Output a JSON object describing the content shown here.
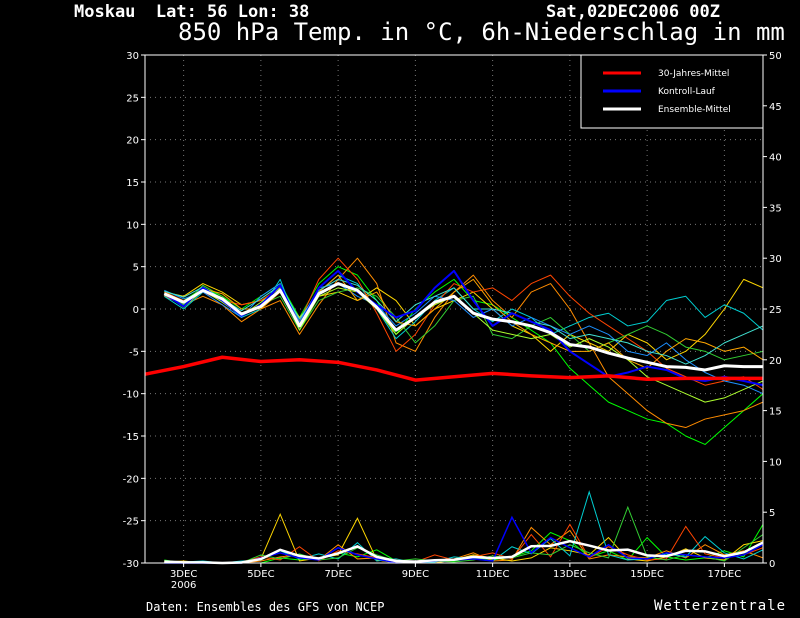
{
  "header": {
    "location": "Moskau  Lat: 56 Lon: 38",
    "date": "Sat,02DEC2006 00Z",
    "title": "850 hPa Temp. in °C, 6h-Niederschlag in mm"
  },
  "footer": {
    "credit": "Daten: Ensembles des GFS von NCEP",
    "brand": "Wetterzentrale"
  },
  "colors": {
    "background": "#000000",
    "climate": "#ff0000",
    "control": "#0000ff",
    "ensemble": "#ffffff",
    "members": [
      "#00ff00",
      "#ff8c00",
      "#ffd700",
      "#00ced1",
      "#ff4500",
      "#32cd32",
      "#1e90ff",
      "#ffa500",
      "#adff2f",
      "#40e0d0"
    ]
  },
  "chart_data": {
    "type": "line",
    "x_unit": "days from 2006-12-02 00Z",
    "xlim": [
      0,
      16
    ],
    "x_ticks": [
      {
        "x": 1,
        "label": "3DEC",
        "label2": "2006"
      },
      {
        "x": 3,
        "label": "5DEC",
        "label2": ""
      },
      {
        "x": 5,
        "label": "7DEC",
        "label2": ""
      },
      {
        "x": 7,
        "label": "9DEC",
        "label2": ""
      },
      {
        "x": 9,
        "label": "11DEC",
        "label2": ""
      },
      {
        "x": 11,
        "label": "13DEC",
        "label2": ""
      },
      {
        "x": 13,
        "label": "15DEC",
        "label2": ""
      },
      {
        "x": 15,
        "label": "17DEC",
        "label2": ""
      }
    ],
    "y_left": {
      "min": -30,
      "max": 30,
      "step": 5,
      "labels": [
        "-30",
        "-25",
        "-20",
        "-15",
        "-10",
        "-5",
        "0",
        "5",
        "10",
        "15",
        "20",
        "25",
        "30"
      ]
    },
    "y_right": {
      "min": 0,
      "max": 50,
      "step": 5,
      "labels": [
        "0",
        "5",
        "10",
        "15",
        "20",
        "25",
        "30",
        "35",
        "40",
        "45",
        "50"
      ]
    },
    "grid": true,
    "legend": {
      "placement": "top-right",
      "entries": [
        "30-Jahres-Mittel",
        "Kontroll-Lauf",
        "Ensemble-Mittel"
      ]
    },
    "temp_series": [
      {
        "name": "30-Jahres-Mittel",
        "role": "climate",
        "x": [
          0,
          1,
          2,
          3,
          4,
          5,
          6,
          7,
          8,
          9,
          10,
          11,
          12,
          13,
          14,
          15,
          16
        ],
        "values": [
          -7.7,
          -6.8,
          -5.7,
          -6.2,
          -6.0,
          -6.3,
          -7.2,
          -8.4,
          -8.0,
          -7.6,
          -7.9,
          -8.1,
          -7.9,
          -8.3,
          -8.2,
          -8.2,
          -8.2
        ]
      },
      {
        "name": "Kontroll-Lauf",
        "role": "control",
        "x": [
          0.5,
          1,
          1.5,
          2,
          2.5,
          3,
          3.5,
          4,
          4.5,
          5,
          5.5,
          6,
          6.5,
          7,
          7.5,
          8,
          8.5,
          9,
          9.5,
          10,
          10.5,
          11,
          11.5,
          12,
          12.5,
          13,
          13.5,
          14,
          14.5,
          15,
          15.5,
          16
        ],
        "values": [
          1.8,
          0.3,
          2.5,
          1.0,
          -0.8,
          0.5,
          2.8,
          -2.0,
          2.5,
          4.5,
          2.0,
          0.5,
          -1.0,
          -0.2,
          2.5,
          4.5,
          1.0,
          -2.0,
          -0.5,
          -1.5,
          -2.5,
          -5.0,
          -6.5,
          -8.0,
          -7.5,
          -6.8,
          -7.2,
          -8.2,
          -8.5,
          -8.0,
          -8.5,
          -9.0
        ]
      },
      {
        "name": "Ensemble-Mittel",
        "role": "ensemble",
        "x": [
          0.5,
          1,
          1.5,
          2,
          2.5,
          3,
          3.5,
          4,
          4.5,
          5,
          5.5,
          6,
          6.5,
          7,
          7.5,
          8,
          8.5,
          9,
          9.5,
          10,
          10.5,
          11,
          11.5,
          12,
          12.5,
          13,
          13.5,
          14,
          14.5,
          15,
          15.5,
          16
        ],
        "values": [
          1.8,
          0.8,
          2.2,
          1.2,
          -0.6,
          0.3,
          2.2,
          -2.0,
          1.8,
          3.0,
          2.2,
          0.2,
          -2.5,
          -1.0,
          0.8,
          1.5,
          -0.5,
          -1.2,
          -1.5,
          -2.0,
          -2.8,
          -4.2,
          -4.5,
          -5.2,
          -5.8,
          -6.3,
          -6.8,
          -6.9,
          -7.2,
          -6.7,
          -6.8,
          -6.8
        ]
      },
      {
        "name": "",
        "role": "member",
        "x": [
          0.5,
          1,
          1.5,
          2,
          2.5,
          3,
          3.5,
          4,
          4.5,
          5,
          5.5,
          6,
          6.5,
          7,
          7.5,
          8,
          8.5,
          9,
          9.5,
          10,
          10.5,
          11,
          11.5,
          12,
          12.5,
          13,
          13.5,
          14,
          14.5,
          15,
          15.5,
          16
        ],
        "values": [
          2.0,
          1.0,
          2.5,
          1.5,
          0.0,
          1.5,
          3.0,
          -1.0,
          3.0,
          5.0,
          4.0,
          1.0,
          -3.0,
          0.0,
          2.0,
          3.5,
          1.0,
          0.5,
          -1.0,
          -2.5,
          -4.0,
          -7.0,
          -9.0,
          -11.0,
          -12.0,
          -13.0,
          -13.5,
          -15.0,
          -16.0,
          -14.0,
          -12.0,
          -10.0
        ]
      },
      {
        "name": "",
        "role": "member",
        "x": [
          0.5,
          1,
          1.5,
          2,
          2.5,
          3,
          3.5,
          4,
          4.5,
          5,
          5.5,
          6,
          6.5,
          7,
          7.5,
          8,
          8.5,
          9,
          9.5,
          10,
          10.5,
          11,
          11.5,
          12,
          12.5,
          13,
          13.5,
          14,
          14.5,
          15,
          15.5,
          16
        ],
        "values": [
          1.5,
          0.5,
          1.5,
          0.5,
          -1.5,
          0.0,
          1.0,
          -3.0,
          0.5,
          3.5,
          6.0,
          3.0,
          -4.0,
          -5.0,
          -1.0,
          2.0,
          4.0,
          1.0,
          -1.0,
          2.0,
          3.0,
          0.0,
          -4.0,
          -8.0,
          -10.0,
          -12.0,
          -13.5,
          -14.0,
          -13.0,
          -12.5,
          -12.0,
          -11.0
        ]
      },
      {
        "name": "",
        "role": "member",
        "x": [
          0.5,
          1,
          1.5,
          2,
          2.5,
          3,
          3.5,
          4,
          4.5,
          5,
          5.5,
          6,
          6.5,
          7,
          7.5,
          8,
          8.5,
          9,
          9.5,
          10,
          10.5,
          11,
          11.5,
          12,
          12.5,
          13,
          13.5,
          14,
          14.5,
          15,
          15.5,
          16
        ],
        "values": [
          2.0,
          1.5,
          3.0,
          2.0,
          0.5,
          1.0,
          2.0,
          -1.0,
          1.5,
          2.0,
          1.0,
          2.5,
          1.0,
          -2.0,
          0.0,
          1.0,
          2.0,
          0.0,
          -2.0,
          -3.0,
          -5.0,
          -3.0,
          -4.0,
          -5.0,
          -3.0,
          -4.0,
          -6.0,
          -5.0,
          -3.0,
          0.0,
          3.5,
          2.5
        ]
      },
      {
        "name": "",
        "role": "member",
        "x": [
          0.5,
          1,
          1.5,
          2,
          2.5,
          3,
          3.5,
          4,
          4.5,
          5,
          5.5,
          6,
          6.5,
          7,
          7.5,
          8,
          8.5,
          9,
          9.5,
          10,
          10.5,
          11,
          11.5,
          12,
          12.5,
          13,
          13.5,
          14,
          14.5,
          15,
          15.5,
          16
        ],
        "values": [
          1.5,
          0.0,
          2.0,
          1.0,
          -1.0,
          0.0,
          3.5,
          -2.5,
          2.0,
          4.0,
          3.0,
          0.0,
          -3.5,
          -1.5,
          1.0,
          2.5,
          0.0,
          -1.5,
          0.0,
          -1.0,
          -3.0,
          -2.0,
          -1.0,
          -0.5,
          -2.0,
          -1.5,
          1.0,
          1.5,
          -1.0,
          0.5,
          -0.5,
          -2.5
        ]
      },
      {
        "name": "",
        "role": "member",
        "x": [
          0.5,
          1,
          1.5,
          2,
          2.5,
          3,
          3.5,
          4,
          4.5,
          5,
          5.5,
          6,
          6.5,
          7,
          7.5,
          8,
          8.5,
          9,
          9.5,
          10,
          10.5,
          11,
          11.5,
          12,
          12.5,
          13,
          13.5,
          14,
          14.5,
          15,
          15.5,
          16
        ],
        "values": [
          2.0,
          1.0,
          2.0,
          1.0,
          0.5,
          1.0,
          2.5,
          -1.5,
          3.5,
          6.0,
          3.5,
          -0.5,
          -5.0,
          -3.0,
          0.5,
          3.0,
          2.0,
          2.5,
          1.0,
          3.0,
          4.0,
          1.5,
          -0.5,
          -2.0,
          -3.5,
          -5.0,
          -7.0,
          -8.0,
          -9.0,
          -8.5,
          -8.0,
          -9.5
        ]
      },
      {
        "name": "",
        "role": "member",
        "x": [
          0.5,
          1,
          1.5,
          2,
          2.5,
          3,
          3.5,
          4,
          4.5,
          5,
          5.5,
          6,
          6.5,
          7,
          7.5,
          8,
          8.5,
          9,
          9.5,
          10,
          10.5,
          11,
          11.5,
          12,
          12.5,
          13,
          13.5,
          14,
          14.5,
          15,
          15.5,
          16
        ],
        "values": [
          1.8,
          0.5,
          2.8,
          1.5,
          -0.5,
          0.5,
          1.5,
          -2.5,
          1.0,
          2.0,
          2.5,
          1.5,
          -1.0,
          -4.0,
          -2.0,
          1.0,
          1.5,
          -3.0,
          -3.5,
          -2.0,
          -1.0,
          -3.0,
          -5.0,
          -4.0,
          -3.0,
          -2.0,
          -3.0,
          -4.5,
          -5.0,
          -6.0,
          -5.5,
          -5.0
        ]
      },
      {
        "name": "",
        "role": "member",
        "x": [
          0.5,
          1,
          1.5,
          2,
          2.5,
          3,
          3.5,
          4,
          4.5,
          5,
          5.5,
          6,
          6.5,
          7,
          7.5,
          8,
          8.5,
          9,
          9.5,
          10,
          10.5,
          11,
          11.5,
          12,
          12.5,
          13,
          13.5,
          14,
          14.5,
          15,
          15.5,
          16
        ],
        "values": [
          2.2,
          1.2,
          2.0,
          0.5,
          -1.0,
          1.5,
          3.0,
          -1.5,
          2.5,
          3.0,
          1.5,
          0.5,
          -2.0,
          -0.5,
          1.5,
          1.0,
          -1.0,
          0.0,
          -2.0,
          -1.0,
          -2.0,
          -3.0,
          -2.0,
          -3.0,
          -5.0,
          -5.5,
          -4.0,
          -6.0,
          -7.5,
          -8.5,
          -9.0,
          -10.0
        ]
      },
      {
        "name": "",
        "role": "member",
        "x": [
          0.5,
          1,
          1.5,
          2,
          2.5,
          3,
          3.5,
          4,
          4.5,
          5,
          5.5,
          6,
          6.5,
          7,
          7.5,
          8,
          8.5,
          9,
          9.5,
          10,
          10.5,
          11,
          11.5,
          12,
          12.5,
          13,
          13.5,
          14,
          14.5,
          15,
          15.5,
          16
        ],
        "values": [
          1.6,
          0.8,
          2.4,
          1.8,
          0.0,
          0.0,
          2.0,
          -2.0,
          2.0,
          4.0,
          1.0,
          2.0,
          -1.5,
          -2.0,
          0.0,
          2.0,
          3.5,
          0.5,
          -1.5,
          -3.0,
          -4.0,
          -5.0,
          -5.0,
          -4.0,
          -6.0,
          -7.0,
          -5.0,
          -3.5,
          -4.0,
          -5.0,
          -4.5,
          -6.0
        ]
      },
      {
        "name": "",
        "role": "member",
        "x": [
          0.5,
          1,
          1.5,
          2,
          2.5,
          3,
          3.5,
          4,
          4.5,
          5,
          5.5,
          6,
          6.5,
          7,
          7.5,
          8,
          8.5,
          9,
          9.5,
          10,
          10.5,
          11,
          11.5,
          12,
          12.5,
          13,
          13.5,
          14,
          14.5,
          15,
          15.5,
          16
        ],
        "values": [
          1.9,
          0.2,
          2.2,
          0.8,
          -0.8,
          0.8,
          2.5,
          -2.5,
          1.5,
          2.5,
          2.0,
          0.0,
          -3.0,
          -1.0,
          0.5,
          1.5,
          -0.5,
          -2.5,
          -3.0,
          -3.5,
          -3.0,
          -4.5,
          -3.5,
          -4.5,
          -6.0,
          -8.0,
          -9.0,
          -10.0,
          -11.0,
          -10.5,
          -9.5,
          -8.5
        ]
      },
      {
        "name": "",
        "role": "member",
        "x": [
          0.5,
          1,
          1.5,
          2,
          2.5,
          3,
          3.5,
          4,
          4.5,
          5,
          5.5,
          6,
          6.5,
          7,
          7.5,
          8,
          8.5,
          9,
          9.5,
          10,
          10.5,
          11,
          11.5,
          12,
          12.5,
          13,
          13.5,
          14,
          14.5,
          15,
          15.5,
          16
        ],
        "values": [
          2.1,
          1.4,
          2.6,
          1.2,
          -0.2,
          1.2,
          2.8,
          -1.2,
          2.2,
          3.5,
          2.8,
          1.0,
          -1.5,
          0.5,
          1.5,
          2.5,
          0.0,
          0.0,
          -0.5,
          -1.5,
          -2.0,
          -3.5,
          -3.0,
          -3.5,
          -4.0,
          -5.0,
          -5.5,
          -6.5,
          -5.5,
          -4.0,
          -3.0,
          -2.0
        ]
      }
    ],
    "precip_x": [
      0.5,
      1,
      1.5,
      2,
      2.5,
      3,
      3.5,
      4,
      4.5,
      5,
      5.5,
      6,
      6.5,
      7,
      7.5,
      8,
      8.5,
      9,
      9.5,
      10,
      10.5,
      11,
      11.5,
      12,
      12.5,
      13,
      13.5,
      14,
      14.5,
      15,
      15.5,
      16
    ],
    "precip_series": [
      {
        "name": "",
        "role": "member",
        "values": [
          0.3,
          0.0,
          0.1,
          0.0,
          0.0,
          0.0,
          0.5,
          0.3,
          0.5,
          1.0,
          0.6,
          1.3,
          0.2,
          0.1,
          0.3,
          0.2,
          0.5,
          0.3,
          0.6,
          1.2,
          3.0,
          2.2,
          0.6,
          1.2,
          0.3,
          2.5,
          0.6,
          0.3,
          0.5,
          1.2,
          0.6,
          3.8
        ]
      },
      {
        "name": "",
        "role": "member",
        "values": [
          0.2,
          0.0,
          0.0,
          0.0,
          0.0,
          0.2,
          0.6,
          0.8,
          0.3,
          1.8,
          0.4,
          0.5,
          0.1,
          0.0,
          0.2,
          0.4,
          1.0,
          0.2,
          0.3,
          3.5,
          1.8,
          3.2,
          0.4,
          0.8,
          0.6,
          0.5,
          1.2,
          0.5,
          1.8,
          0.8,
          1.2,
          0.5
        ]
      },
      {
        "name": "",
        "role": "member",
        "values": [
          0.1,
          0.2,
          0.0,
          0.0,
          0.0,
          0.4,
          4.8,
          0.2,
          0.5,
          0.8,
          4.4,
          0.3,
          0.0,
          0.2,
          0.0,
          0.3,
          0.8,
          0.5,
          0.2,
          0.5,
          1.5,
          1.2,
          0.8,
          2.5,
          0.4,
          0.2,
          0.6,
          1.4,
          0.5,
          0.3,
          1.8,
          2.2
        ]
      },
      {
        "name": "",
        "role": "member",
        "values": [
          0.0,
          0.1,
          0.2,
          0.0,
          0.2,
          0.3,
          1.2,
          0.4,
          0.9,
          0.4,
          2.0,
          0.2,
          0.4,
          0.0,
          0.1,
          0.6,
          0.4,
          0.2,
          1.6,
          0.9,
          2.4,
          0.7,
          7.0,
          0.8,
          0.3,
          0.4,
          0.9,
          0.6,
          2.6,
          1.0,
          0.4,
          1.3
        ]
      },
      {
        "name": "",
        "role": "member",
        "values": [
          0.2,
          0.1,
          0.0,
          0.0,
          0.1,
          0.6,
          0.3,
          1.6,
          0.2,
          1.2,
          0.9,
          0.5,
          0.3,
          0.1,
          0.8,
          0.3,
          0.6,
          1.0,
          0.4,
          2.8,
          0.6,
          3.8,
          0.5,
          1.6,
          0.8,
          0.3,
          0.4,
          3.6,
          0.9,
          0.5,
          0.8,
          1.5
        ]
      },
      {
        "name": "",
        "role": "member",
        "values": [
          0.1,
          0.0,
          0.1,
          0.0,
          0.0,
          0.8,
          0.4,
          0.9,
          0.3,
          0.5,
          1.5,
          0.8,
          0.2,
          0.4,
          0.2,
          0.1,
          0.3,
          0.7,
          0.5,
          1.0,
          0.8,
          1.8,
          1.0,
          0.5,
          5.5,
          0.6,
          0.3,
          0.8,
          0.6,
          0.2,
          1.5,
          2.8
        ]
      }
    ],
    "precip_control": [
      0.0,
      0.0,
      0.0,
      0.0,
      0.0,
      0.5,
      1.0,
      0.5,
      0.3,
      1.5,
      0.8,
      0.4,
      0.0,
      0.1,
      0.2,
      0.3,
      0.4,
      0.2,
      4.5,
      1.0,
      2.5,
      1.5,
      0.6,
      1.8,
      0.5,
      0.4,
      1.0,
      0.8,
      0.6,
      0.5,
      0.8,
      1.8
    ]
  }
}
